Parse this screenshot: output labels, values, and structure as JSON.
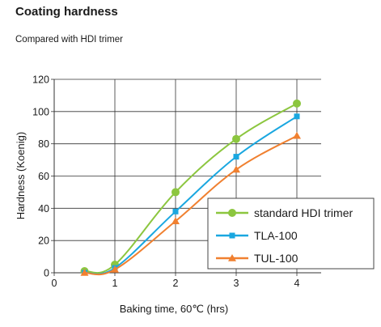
{
  "chart_data": {
    "type": "line",
    "title": "Coating hardness",
    "subtitle": "Compared with HDI trimer",
    "xlabel": "Baking time, 60℃ (hrs)",
    "ylabel": "Hardness (Koenig)",
    "xlim": [
      0,
      4.4
    ],
    "ylim": [
      0,
      120
    ],
    "xticks": [
      0,
      1,
      2,
      3,
      4
    ],
    "yticks": [
      0,
      20,
      40,
      60,
      80,
      100,
      120
    ],
    "grid": true,
    "legend_position": "lower-right",
    "series": [
      {
        "name": "standard HDI trimer",
        "color": "#8cc63f",
        "marker": "circle",
        "x": [
          0.5,
          1,
          2,
          3,
          4
        ],
        "y": [
          1,
          5,
          50,
          83,
          105
        ]
      },
      {
        "name": "TLA-100",
        "color": "#1aa7e0",
        "marker": "square",
        "x": [
          0.5,
          1,
          2,
          3,
          4
        ],
        "y": [
          0,
          3,
          38,
          72,
          97
        ]
      },
      {
        "name": "TUL-100",
        "color": "#f08030",
        "marker": "triangle",
        "x": [
          0.5,
          1,
          2,
          3,
          4
        ],
        "y": [
          0,
          2,
          32,
          64,
          85
        ]
      }
    ]
  }
}
